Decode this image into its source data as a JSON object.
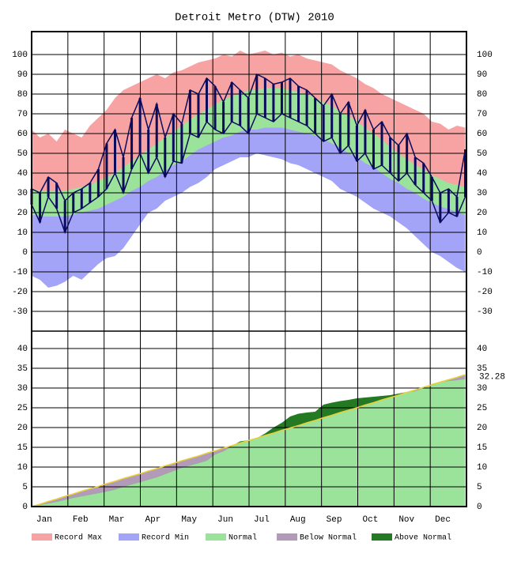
{
  "chart_data": [
    {
      "type": "temperature",
      "title": "Detroit Metro (DTW) 2010",
      "x": [
        1,
        8,
        15,
        22,
        29,
        36,
        43,
        50,
        57,
        64,
        71,
        78,
        85,
        92,
        99,
        106,
        113,
        120,
        127,
        134,
        141,
        148,
        155,
        162,
        169,
        176,
        183,
        190,
        197,
        204,
        211,
        218,
        225,
        232,
        239,
        246,
        253,
        260,
        267,
        274,
        281,
        288,
        295,
        302,
        309,
        316,
        323,
        330,
        337,
        344,
        351,
        358,
        365
      ],
      "xlim": [
        1,
        366
      ],
      "ylim": [
        -40,
        111.6
      ],
      "yticks": [
        100,
        90,
        80,
        70,
        60,
        50,
        40,
        30,
        20,
        10,
        0,
        -10,
        -20,
        -30
      ],
      "record_max": [
        62,
        58,
        60,
        56,
        62,
        60,
        58,
        64,
        68,
        72,
        78,
        82,
        84,
        86,
        88,
        90,
        88,
        91,
        92,
        94,
        96,
        97,
        98,
        100,
        99,
        102,
        100,
        101,
        102,
        100,
        101,
        99,
        100,
        98,
        97,
        96,
        95,
        92,
        90,
        88,
        85,
        83,
        80,
        78,
        76,
        74,
        72,
        70,
        66,
        65,
        62,
        64,
        63
      ],
      "record_min": [
        -12,
        -14,
        -18,
        -17,
        -15,
        -12,
        -14,
        -10,
        -6,
        -3,
        -2,
        2,
        8,
        14,
        20,
        22,
        26,
        28,
        30,
        33,
        35,
        38,
        42,
        44,
        46,
        48,
        48,
        50,
        49,
        48,
        47,
        45,
        44,
        42,
        40,
        38,
        36,
        32,
        30,
        28,
        25,
        22,
        20,
        18,
        15,
        12,
        8,
        4,
        0,
        -2,
        -5,
        -8,
        -10
      ],
      "normal_high": [
        32,
        31,
        31,
        31,
        31,
        32,
        33,
        34,
        36,
        38,
        40,
        43,
        46,
        49,
        52,
        55,
        58,
        61,
        64,
        67,
        70,
        72,
        75,
        77,
        79,
        80,
        82,
        82,
        83,
        83,
        83,
        82,
        81,
        80,
        78,
        76,
        74,
        71,
        69,
        66,
        63,
        60,
        57,
        53,
        50,
        47,
        44,
        42,
        39,
        37,
        35,
        34,
        33
      ],
      "normal_low": [
        19,
        18,
        18,
        18,
        18,
        19,
        20,
        21,
        22,
        24,
        26,
        28,
        31,
        33,
        36,
        38,
        41,
        44,
        46,
        49,
        52,
        54,
        56,
        58,
        59,
        61,
        62,
        62,
        63,
        63,
        63,
        62,
        61,
        60,
        59,
        57,
        55,
        53,
        50,
        48,
        45,
        43,
        40,
        37,
        35,
        32,
        30,
        27,
        25,
        23,
        22,
        20,
        19
      ],
      "actual_color": "#0b0b5c",
      "actual_high": [
        32,
        30,
        38,
        35,
        26,
        30,
        32,
        35,
        42,
        55,
        62,
        48,
        68,
        78,
        62,
        75,
        58,
        70,
        65,
        82,
        80,
        88,
        84,
        76,
        86,
        82,
        78,
        90,
        88,
        85,
        86,
        88,
        84,
        82,
        78,
        74,
        80,
        70,
        76,
        64,
        72,
        62,
        66,
        58,
        54,
        60,
        48,
        45,
        38,
        30,
        32,
        28,
        52
      ],
      "actual_low": [
        24,
        15,
        28,
        22,
        10,
        20,
        22,
        25,
        28,
        32,
        40,
        30,
        42,
        50,
        40,
        48,
        38,
        46,
        45,
        60,
        58,
        66,
        62,
        60,
        66,
        64,
        60,
        70,
        68,
        66,
        70,
        68,
        66,
        64,
        60,
        56,
        58,
        50,
        54,
        46,
        50,
        42,
        44,
        40,
        36,
        40,
        34,
        30,
        26,
        15,
        20,
        18,
        28
      ]
    },
    {
      "type": "precipitation",
      "categories": [
        "Jan",
        "Feb",
        "Mar",
        "Apr",
        "May",
        "Jun",
        "Jul",
        "Aug",
        "Sep",
        "Oct",
        "Nov",
        "Dec"
      ],
      "x": [
        1,
        8,
        15,
        22,
        29,
        36,
        43,
        50,
        57,
        64,
        71,
        78,
        85,
        92,
        99,
        106,
        113,
        120,
        127,
        134,
        141,
        148,
        155,
        162,
        169,
        176,
        183,
        190,
        197,
        204,
        211,
        218,
        225,
        232,
        239,
        246,
        253,
        260,
        267,
        274,
        281,
        288,
        295,
        302,
        309,
        316,
        323,
        330,
        337,
        344,
        351,
        358,
        365
      ],
      "xlim": [
        1,
        366
      ],
      "ylim": [
        0,
        44.4
      ],
      "yticks": [
        0,
        5,
        10,
        15,
        20,
        25,
        30,
        35,
        40
      ],
      "actual": [
        0,
        0.4,
        0.8,
        1.2,
        1.7,
        2.2,
        2.6,
        3.0,
        3.4,
        3.8,
        4.3,
        5.0,
        5.6,
        6.2,
        6.8,
        7.4,
        8.2,
        9.0,
        9.8,
        10.4,
        11.0,
        11.6,
        13.2,
        14.0,
        15.3,
        16.5,
        16.8,
        17.3,
        18.5,
        20.0,
        21.2,
        22.8,
        23.5,
        23.8,
        24.0,
        25.8,
        26.3,
        26.7,
        27.0,
        27.4,
        27.6,
        27.8,
        28.0,
        28.2,
        28.6,
        29.0,
        29.2,
        30.0,
        31.0,
        31.6,
        31.8,
        32.0,
        32.28
      ],
      "normal": [
        0,
        0.6,
        1.3,
        1.9,
        2.6,
        3.2,
        3.9,
        4.5,
        5.1,
        5.8,
        6.4,
        7.1,
        7.7,
        8.3,
        9.0,
        9.6,
        10.3,
        10.9,
        11.6,
        12.2,
        12.8,
        13.5,
        14.1,
        14.8,
        15.4,
        16.1,
        16.7,
        17.3,
        18.0,
        18.6,
        19.3,
        19.9,
        20.5,
        21.2,
        21.8,
        22.5,
        23.1,
        23.8,
        24.4,
        25.0,
        25.7,
        26.3,
        27.0,
        27.6,
        28.2,
        28.9,
        29.5,
        30.2,
        30.8,
        31.5,
        32.1,
        32.7,
        33.4
      ],
      "normal_color": "#e8cf3a"
    }
  ],
  "legend": [
    {
      "name": "Record Max",
      "color": "#f7a3a3"
    },
    {
      "name": "Record Min",
      "color": "#a3a3f7"
    },
    {
      "name": "Normal",
      "color": "#9be39b"
    },
    {
      "name": "Below Normal",
      "color": "#b29bb8"
    },
    {
      "name": "Above Normal",
      "color": "#237a23"
    }
  ]
}
